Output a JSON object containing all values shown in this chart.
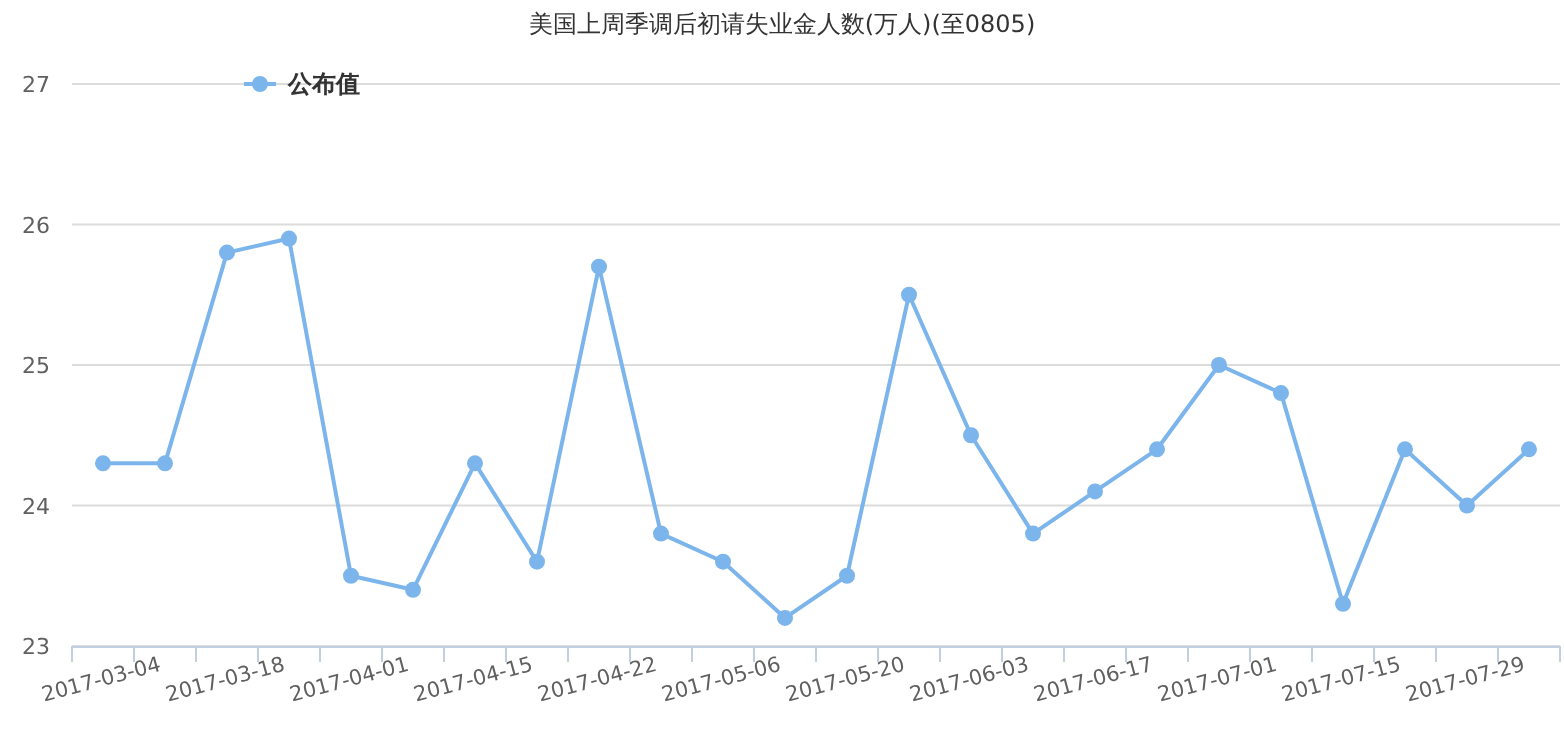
{
  "chart_data": {
    "type": "line",
    "title": "美国上周季调后初请失业金人数(万人)(至0805)",
    "categories": [
      "2017-03-04",
      null,
      "2017-03-18",
      null,
      "2017-04-01",
      null,
      "2017-04-15",
      null,
      "2017-04-22",
      null,
      "2017-05-06",
      null,
      "2017-05-20",
      null,
      "2017-06-03",
      null,
      "2017-06-17",
      null,
      "2017-07-01",
      null,
      "2017-07-15",
      null,
      "2017-07-29",
      null
    ],
    "series": [
      {
        "name": "公布值",
        "color": "#7cb5ec",
        "values": [
          24.3,
          24.3,
          25.8,
          25.9,
          23.5,
          23.4,
          24.3,
          23.6,
          25.7,
          23.8,
          23.6,
          23.2,
          23.5,
          25.5,
          24.5,
          23.8,
          24.1,
          24.4,
          25.0,
          24.8,
          23.3,
          24.4,
          24.0,
          24.4
        ]
      }
    ],
    "ylim": [
      23,
      27
    ],
    "yticks": [
      23,
      24,
      25,
      26,
      27
    ],
    "grid": "y",
    "legend": "top left",
    "marker": "circle",
    "line_style": "solid"
  }
}
